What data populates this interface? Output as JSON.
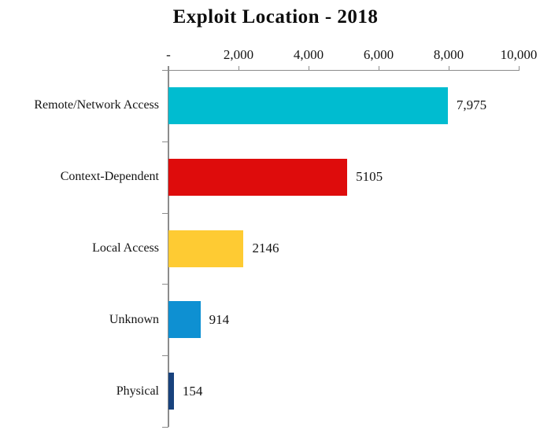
{
  "title": "Exploit Location - 2018",
  "chart_data": {
    "type": "bar",
    "orientation": "horizontal",
    "title": "Exploit Location - 2018",
    "categories": [
      "Remote/Network Access",
      "Context-Dependent",
      "Local Access",
      "Unknown",
      "Physical"
    ],
    "values": [
      7975,
      5105,
      2146,
      914,
      154
    ],
    "value_labels": [
      "7,975",
      "5105",
      "2146",
      "914",
      "154"
    ],
    "bar_colors": [
      "#00bcd0",
      "#de0c0c",
      "#fecb33",
      "#0e90d2",
      "#18427d"
    ],
    "xlim": [
      0,
      10000
    ],
    "x_ticks": [
      0,
      2000,
      4000,
      6000,
      8000,
      10000
    ],
    "x_tick_labels": [
      "-",
      "2,000",
      "4,000",
      "6,000",
      "8,000",
      "10,000"
    ],
    "x_axis_position": "top",
    "grid": false,
    "legend": false,
    "axis_color": "#8c8c8c",
    "text_color": "#141414",
    "background_color": "#ffffff"
  }
}
